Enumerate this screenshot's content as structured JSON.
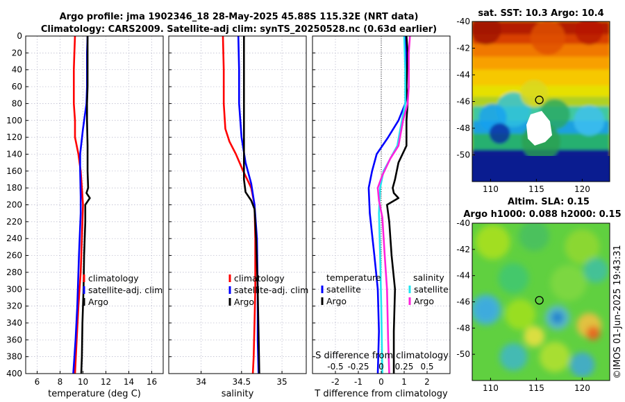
{
  "header": {
    "line1": "Argo profile: jma 1902346_18 28-May-2025 45.88S 115.32E (NRT data)",
    "line2": "Climatology: CARS2009. Satellite-adj clim: synTS_20250528.nc (0.63d earlier)"
  },
  "watermark": "©IMOS 01-Jun-2025 19:43:31",
  "colors": {
    "climatology": "#ff0000",
    "satellite": "#0000ff",
    "argo": "#000000",
    "sat_salinity": "#22e5f0",
    "argo_salinity": "#ff22dd"
  },
  "chart_data": [
    {
      "id": "temperature",
      "type": "line",
      "xlabel": "temperature (deg C)",
      "xlim": [
        5,
        17
      ],
      "xticks": [
        6,
        8,
        10,
        12,
        14,
        16
      ],
      "ylim": [
        400,
        0
      ],
      "yticks": [
        0,
        20,
        40,
        60,
        80,
        100,
        120,
        140,
        160,
        180,
        200,
        220,
        240,
        260,
        280,
        300,
        320,
        340,
        360,
        380,
        400
      ],
      "legend": [
        "climatology",
        "satellite-adj. clim",
        "Argo"
      ],
      "series": [
        {
          "name": "climatology",
          "color": "#ff0000",
          "points": [
            [
              9.3,
              0
            ],
            [
              9.25,
              20
            ],
            [
              9.2,
              40
            ],
            [
              9.2,
              60
            ],
            [
              9.2,
              80
            ],
            [
              9.3,
              100
            ],
            [
              9.3,
              120
            ],
            [
              9.6,
              140
            ],
            [
              9.8,
              160
            ],
            [
              9.9,
              180
            ],
            [
              10.0,
              200
            ],
            [
              9.9,
              240
            ],
            [
              9.8,
              280
            ],
            [
              9.6,
              320
            ],
            [
              9.45,
              360
            ],
            [
              9.3,
              400
            ]
          ]
        },
        {
          "name": "satellite-adj. clim",
          "color": "#0000ff",
          "points": [
            [
              10.4,
              0
            ],
            [
              10.35,
              20
            ],
            [
              10.35,
              60
            ],
            [
              10.3,
              80
            ],
            [
              10.0,
              110
            ],
            [
              9.75,
              140
            ],
            [
              9.75,
              160
            ],
            [
              9.8,
              190
            ],
            [
              9.8,
              210
            ],
            [
              9.65,
              260
            ],
            [
              9.5,
              320
            ],
            [
              9.35,
              360
            ],
            [
              9.15,
              400
            ]
          ]
        },
        {
          "name": "Argo",
          "color": "#000000",
          "points": [
            [
              10.4,
              0
            ],
            [
              10.4,
              20
            ],
            [
              10.4,
              60
            ],
            [
              10.35,
              80
            ],
            [
              10.35,
              100
            ],
            [
              10.4,
              130
            ],
            [
              10.4,
              160
            ],
            [
              10.45,
              180
            ],
            [
              10.3,
              186
            ],
            [
              10.6,
              192
            ],
            [
              10.2,
              200
            ],
            [
              10.2,
              220
            ],
            [
              10.1,
              260
            ],
            [
              10.05,
              300
            ],
            [
              9.95,
              340
            ],
            [
              9.9,
              380
            ],
            [
              9.85,
              400
            ]
          ]
        }
      ]
    },
    {
      "id": "salinity",
      "type": "line",
      "xlabel": "salinity",
      "xlim": [
        33.6,
        35.3
      ],
      "xticks": [
        34,
        34.5,
        35
      ],
      "xtick_labels": [
        "34",
        "34.5",
        "35"
      ],
      "ylim": [
        400,
        0
      ],
      "legend": [
        "climatology",
        "satellite-adj. clim",
        "Argo"
      ],
      "series": [
        {
          "name": "climatology",
          "color": "#ff0000",
          "points": [
            [
              34.27,
              0
            ],
            [
              34.28,
              40
            ],
            [
              34.28,
              80
            ],
            [
              34.3,
              110
            ],
            [
              34.35,
              125
            ],
            [
              34.43,
              140
            ],
            [
              34.52,
              160
            ],
            [
              34.62,
              180
            ],
            [
              34.66,
              200
            ],
            [
              34.67,
              240
            ],
            [
              34.67,
              300
            ],
            [
              34.66,
              340
            ],
            [
              34.65,
              380
            ],
            [
              34.64,
              400
            ]
          ]
        },
        {
          "name": "satellite-adj. clim",
          "color": "#0000ff",
          "points": [
            [
              34.46,
              0
            ],
            [
              34.47,
              40
            ],
            [
              34.47,
              80
            ],
            [
              34.5,
              120
            ],
            [
              34.55,
              150
            ],
            [
              34.62,
              175
            ],
            [
              34.66,
              200
            ],
            [
              34.69,
              240
            ],
            [
              34.7,
              300
            ],
            [
              34.7,
              360
            ],
            [
              34.71,
              400
            ]
          ]
        },
        {
          "name": "Argo",
          "color": "#000000",
          "points": [
            [
              34.53,
              0
            ],
            [
              34.53,
              40
            ],
            [
              34.53,
              120
            ],
            [
              34.53,
              170
            ],
            [
              34.55,
              185
            ],
            [
              34.62,
              195
            ],
            [
              34.66,
              205
            ],
            [
              34.68,
              240
            ],
            [
              34.7,
              300
            ],
            [
              34.71,
              350
            ],
            [
              34.72,
              400
            ]
          ]
        }
      ]
    },
    {
      "id": "difference",
      "type": "line",
      "xlabel": "T difference from climatology",
      "xlabel_top": "S difference from climatology",
      "xlim": [
        -3,
        3
      ],
      "xticks": [
        -2,
        -1,
        0,
        1,
        2
      ],
      "top_xtick_labels": [
        "-0.5",
        "-0.25",
        "0",
        "0.25",
        "0.5"
      ],
      "top_xtick_values": [
        -2,
        -1,
        0,
        1,
        2
      ],
      "ylim": [
        400,
        0
      ],
      "legend_left_title": "temperature",
      "legend_right_title": "salinity",
      "legend_left": [
        "satellite",
        "Argo"
      ],
      "legend_right": [
        "satellite",
        "Argo"
      ],
      "series": [
        {
          "name": "T satellite",
          "color": "#0000ff",
          "points": [
            [
              1.05,
              0
            ],
            [
              1.1,
              20
            ],
            [
              1.1,
              60
            ],
            [
              1.05,
              80
            ],
            [
              0.75,
              100
            ],
            [
              0.3,
              120
            ],
            [
              -0.2,
              140
            ],
            [
              -0.4,
              160
            ],
            [
              -0.55,
              180
            ],
            [
              -0.5,
              210
            ],
            [
              -0.3,
              260
            ],
            [
              -0.15,
              300
            ],
            [
              -0.1,
              350
            ],
            [
              -0.15,
              400
            ]
          ]
        },
        {
          "name": "T Argo",
          "color": "#000000",
          "points": [
            [
              1.1,
              0
            ],
            [
              1.15,
              20
            ],
            [
              1.1,
              60
            ],
            [
              1.15,
              80
            ],
            [
              1.1,
              100
            ],
            [
              1.1,
              130
            ],
            [
              0.75,
              150
            ],
            [
              0.6,
              170
            ],
            [
              0.5,
              180
            ],
            [
              0.55,
              186
            ],
            [
              0.75,
              192
            ],
            [
              0.25,
              200
            ],
            [
              0.35,
              220
            ],
            [
              0.45,
              260
            ],
            [
              0.6,
              300
            ],
            [
              0.55,
              350
            ],
            [
              0.55,
              400
            ]
          ]
        },
        {
          "name": "S satellite",
          "color": "#22e5f0",
          "points": [
            [
              1.0,
              0
            ],
            [
              1.05,
              40
            ],
            [
              1.05,
              80
            ],
            [
              0.9,
              100
            ],
            [
              0.7,
              130
            ],
            [
              0.4,
              145
            ],
            [
              0.1,
              160
            ],
            [
              -0.05,
              180
            ],
            [
              -0.1,
              210
            ],
            [
              -0.05,
              260
            ],
            [
              0.0,
              320
            ],
            [
              0.05,
              400
            ]
          ]
        },
        {
          "name": "S Argo",
          "color": "#ff22dd",
          "points": [
            [
              1.25,
              0
            ],
            [
              1.2,
              20
            ],
            [
              1.2,
              60
            ],
            [
              1.15,
              80
            ],
            [
              0.95,
              100
            ],
            [
              0.75,
              130
            ],
            [
              0.4,
              145
            ],
            [
              0.05,
              165
            ],
            [
              -0.15,
              180
            ],
            [
              -0.1,
              195
            ],
            [
              0.05,
              215
            ],
            [
              0.15,
              260
            ],
            [
              0.25,
              300
            ],
            [
              0.3,
              360
            ],
            [
              0.35,
              400
            ]
          ]
        }
      ]
    },
    {
      "id": "sst_map",
      "type": "heatmap",
      "title": "sat. SST: 10.3 Argo: 10.4",
      "xlim": [
        108,
        123
      ],
      "ylim": [
        -52,
        -40
      ],
      "xticks": [
        110,
        115,
        120
      ],
      "yticks": [
        -40,
        -42,
        -44,
        -46,
        -48,
        -50
      ],
      "marker": [
        115.32,
        -45.88
      ]
    },
    {
      "id": "sla_map",
      "type": "heatmap",
      "title_line1": "Altim. SLA: 0.15",
      "title_line2": "Argo h1000: 0.088 h2000: 0.15",
      "xlim": [
        108,
        123
      ],
      "ylim": [
        -52,
        -40
      ],
      "xticks": [
        110,
        115,
        120
      ],
      "yticks": [
        -40,
        -42,
        -44,
        -46,
        -48,
        -50
      ],
      "marker": [
        115.32,
        -45.88
      ]
    }
  ]
}
